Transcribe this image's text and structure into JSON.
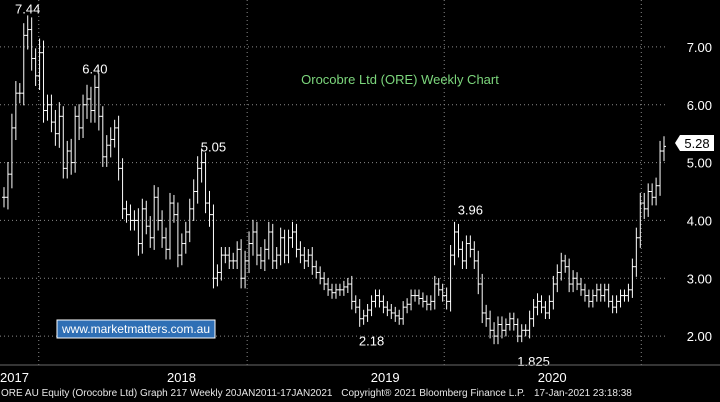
{
  "chart_data": {
    "type": "ohlc",
    "title": "Orocobre Ltd (ORE) Weekly Chart",
    "watermark": "www.marketmatters.com.au",
    "ylim": [
      1.5,
      7.5
    ],
    "yticks": [
      "2.00",
      "3.00",
      "4.00",
      "5.00",
      "6.00",
      "7.00"
    ],
    "ytick_values": [
      2,
      3,
      4,
      5,
      6,
      7
    ],
    "xlabels": [
      {
        "label": "2017",
        "t": 0
      },
      {
        "label": "2018",
        "t": 0.25
      },
      {
        "label": "2019",
        "t": 0.555
      },
      {
        "label": "2020",
        "t": 0.805
      }
    ],
    "xdividers": [
      0.058,
      0.37,
      0.665,
      0.96
    ],
    "annotations": [
      {
        "label": "7.44",
        "i": 6
      },
      {
        "label": "6.40",
        "i": 23
      },
      {
        "label": "5.05",
        "i": 53
      },
      {
        "label": "2.18",
        "i": 93
      },
      {
        "label": "3.96",
        "i": 118
      },
      {
        "label": "1.825",
        "i": 134
      }
    ],
    "last_price": "5.28",
    "last_value": 5.28,
    "grid": true,
    "colors": {
      "background": "#000000",
      "bars": "#ffffff",
      "grid": "#8a8a8a",
      "title": "#7cd67c",
      "watermark_bg": "#2f6fb5",
      "price_box": "#ffffff"
    },
    "closes": [
      4.4,
      4.8,
      5.6,
      6.2,
      6.2,
      7.2,
      7.3,
      6.8,
      6.5,
      6.9,
      5.9,
      6.0,
      5.7,
      5.5,
      5.8,
      4.9,
      5.2,
      5.0,
      5.8,
      5.6,
      6.0,
      6.1,
      5.9,
      6.3,
      5.8,
      5.1,
      5.3,
      5.4,
      5.6,
      4.9,
      4.2,
      4.1,
      4.0,
      4.0,
      3.6,
      4.2,
      3.9,
      3.7,
      4.4,
      4.0,
      3.7,
      3.5,
      4.3,
      4.1,
      3.4,
      3.6,
      3.8,
      4.2,
      4.5,
      4.9,
      5.0,
      4.3,
      4.1,
      3.0,
      3.1,
      3.4,
      3.4,
      3.3,
      3.3,
      3.5,
      3.0,
      3.3,
      3.6,
      3.8,
      3.4,
      3.3,
      3.5,
      3.8,
      3.3,
      3.4,
      3.7,
      3.4,
      3.7,
      3.8,
      3.5,
      3.4,
      3.3,
      3.4,
      3.2,
      3.1,
      3.0,
      2.9,
      2.8,
      2.75,
      2.8,
      2.8,
      2.85,
      2.9,
      2.6,
      2.5,
      2.3,
      2.35,
      2.45,
      2.6,
      2.7,
      2.6,
      2.5,
      2.45,
      2.4,
      2.35,
      2.3,
      2.5,
      2.55,
      2.7,
      2.7,
      2.65,
      2.6,
      2.55,
      2.6,
      2.9,
      2.8,
      2.7,
      2.6,
      3.4,
      3.8,
      3.5,
      3.3,
      3.6,
      3.5,
      3.3,
      2.9,
      2.4,
      2.3,
      2.1,
      2.0,
      2.2,
      2.1,
      2.2,
      2.3,
      2.2,
      2.0,
      2.1,
      2.1,
      2.3,
      2.5,
      2.6,
      2.5,
      2.4,
      2.6,
      2.9,
      3.1,
      3.3,
      3.2,
      2.9,
      3.0,
      2.9,
      2.8,
      2.7,
      2.6,
      2.7,
      2.8,
      2.7,
      2.8,
      2.6,
      2.5,
      2.6,
      2.7,
      2.7,
      2.8,
      3.2,
      3.7,
      4.3,
      4.2,
      4.5,
      4.4,
      4.6,
      5.2,
      5.28
    ],
    "ranges": [
      0.5,
      0.6,
      0.7,
      0.6,
      0.5,
      0.6,
      0.7,
      0.6,
      0.5,
      0.7,
      0.6,
      0.5,
      0.5,
      0.6,
      0.7,
      0.5,
      0.5,
      0.6,
      0.5,
      0.6,
      0.5,
      0.7,
      0.6,
      0.6,
      0.7,
      0.5,
      0.5,
      0.6,
      0.4,
      0.6,
      0.5,
      0.4,
      0.5,
      0.5,
      0.6,
      0.5,
      0.4,
      0.5,
      0.6,
      0.5,
      0.5,
      0.5,
      0.5,
      0.4,
      0.6,
      0.5,
      0.5,
      0.5,
      0.6,
      0.6,
      0.7,
      0.5,
      0.6,
      0.5,
      0.4,
      0.4,
      0.4,
      0.4,
      0.4,
      0.4,
      0.5,
      0.5,
      0.6,
      0.6,
      0.5,
      0.4,
      0.5,
      0.5,
      0.4,
      0.4,
      0.5,
      0.4,
      0.4,
      0.5,
      0.4,
      0.4,
      0.4,
      0.3,
      0.4,
      0.3,
      0.3,
      0.3,
      0.3,
      0.3,
      0.3,
      0.3,
      0.3,
      0.3,
      0.4,
      0.3,
      0.4,
      0.3,
      0.3,
      0.3,
      0.3,
      0.3,
      0.3,
      0.3,
      0.3,
      0.3,
      0.3,
      0.3,
      0.3,
      0.3,
      0.3,
      0.3,
      0.3,
      0.3,
      0.3,
      0.4,
      0.3,
      0.3,
      0.4,
      0.5,
      0.5,
      0.4,
      0.4,
      0.4,
      0.4,
      0.4,
      0.5,
      0.5,
      0.4,
      0.4,
      0.4,
      0.4,
      0.4,
      0.3,
      0.3,
      0.3,
      0.3,
      0.3,
      0.3,
      0.4,
      0.4,
      0.4,
      0.3,
      0.3,
      0.3,
      0.4,
      0.4,
      0.4,
      0.3,
      0.4,
      0.4,
      0.3,
      0.3,
      0.3,
      0.3,
      0.3,
      0.3,
      0.3,
      0.3,
      0.3,
      0.3,
      0.3,
      0.3,
      0.3,
      0.3,
      0.4,
      0.5,
      0.5,
      0.5,
      0.4,
      0.4,
      0.4,
      0.5,
      0.5
    ]
  },
  "footer": {
    "ticker": "ORE AU Equity (Orocobre Ltd) Graph 217  Weekly 20JAN2011-17JAN2021",
    "copyright": "Copyright® 2021 Bloomberg Finance L.P.",
    "timestamp": "17-Jan-2021 23:18:38"
  }
}
